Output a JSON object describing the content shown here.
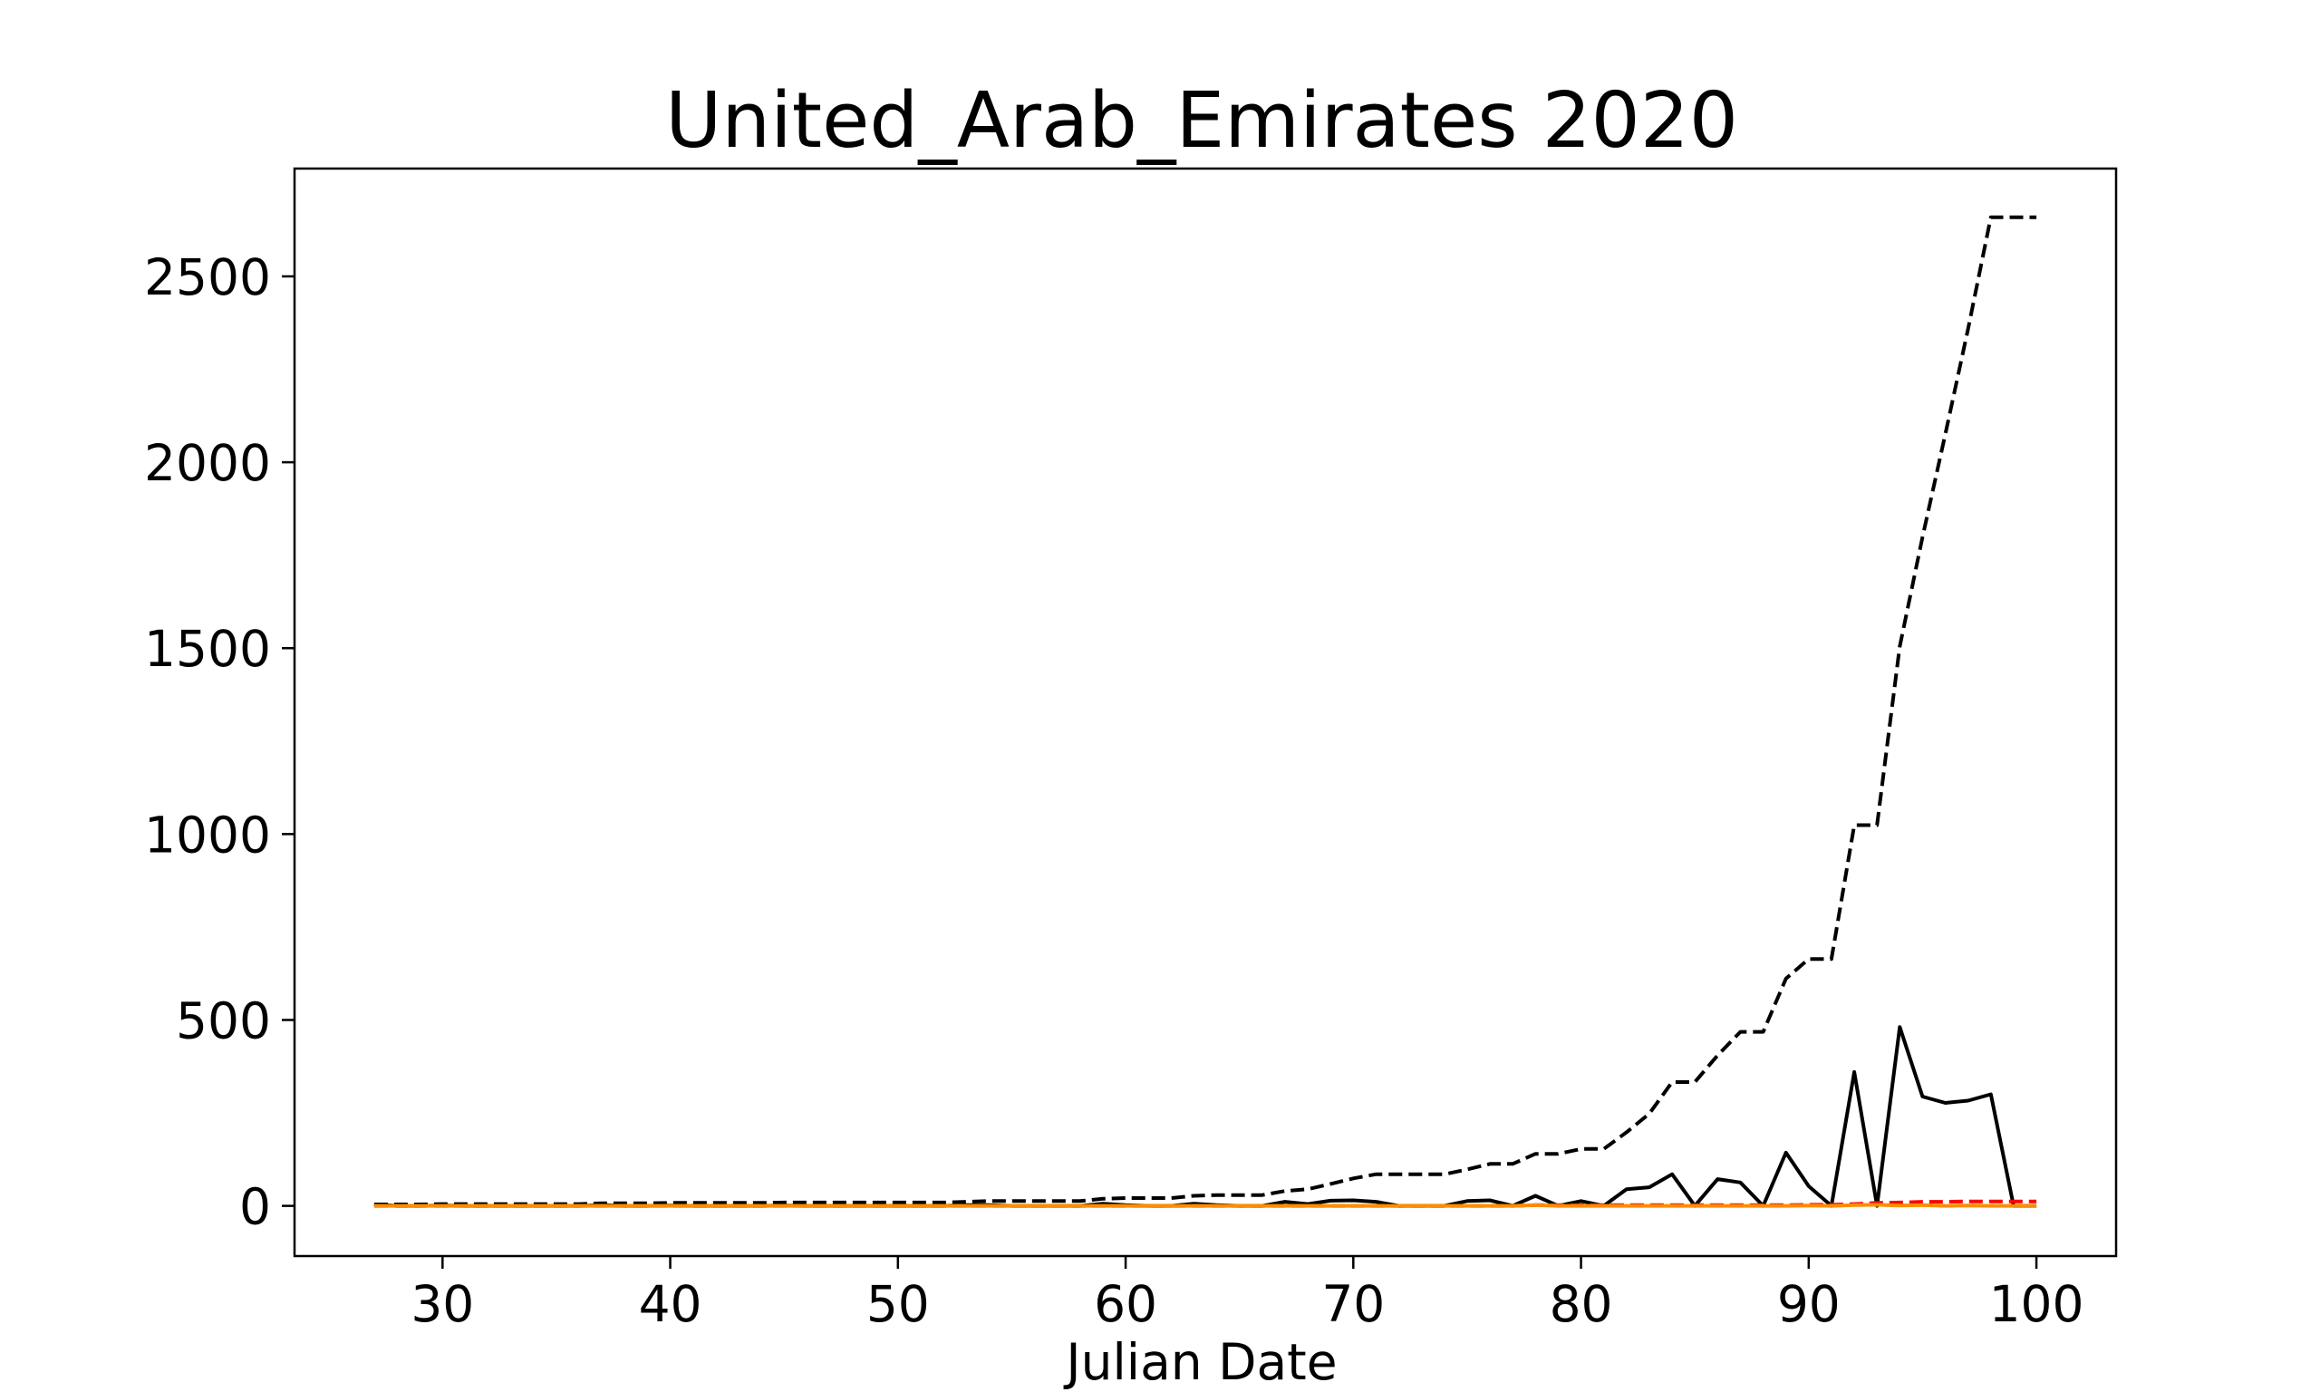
{
  "chart_data": {
    "type": "line",
    "title": "United_Arab_Emirates 2020",
    "xlabel": "Julian Date",
    "ylabel": "",
    "xlim": [
      23.5,
      103.5
    ],
    "ylim": [
      -135,
      2790
    ],
    "xticks": [
      30,
      40,
      50,
      60,
      70,
      80,
      90,
      100
    ],
    "yticks": [
      0,
      500,
      1000,
      1500,
      2000,
      2500
    ],
    "grid": false,
    "legend": "none",
    "x": [
      27,
      28,
      29,
      30,
      31,
      32,
      33,
      34,
      35,
      36,
      37,
      38,
      39,
      40,
      41,
      42,
      43,
      44,
      45,
      46,
      47,
      48,
      49,
      50,
      51,
      52,
      53,
      54,
      55,
      56,
      57,
      58,
      59,
      60,
      61,
      62,
      63,
      64,
      65,
      66,
      67,
      68,
      69,
      70,
      71,
      72,
      73,
      74,
      75,
      76,
      77,
      78,
      79,
      80,
      81,
      82,
      83,
      84,
      85,
      86,
      87,
      88,
      89,
      90,
      91,
      92,
      93,
      94,
      95,
      96,
      97,
      98,
      99,
      100
    ],
    "series": [
      {
        "style": "dashed",
        "color": "#000000",
        "values": [
          4,
          4,
          4,
          5,
          5,
          5,
          5,
          5,
          5,
          5,
          7,
          7,
          7,
          8,
          8,
          8,
          8,
          8,
          9,
          9,
          9,
          9,
          9,
          9,
          9,
          9,
          11,
          13,
          13,
          13,
          13,
          13,
          19,
          21,
          21,
          21,
          27,
          29,
          29,
          29,
          40,
          45,
          59,
          74,
          85,
          85,
          85,
          85,
          98,
          113,
          113,
          140,
          140,
          153,
          153,
          198,
          248,
          333,
          333,
          405,
          468,
          468,
          611,
          664,
          664,
          1024,
          1024,
          1505,
          1799,
          2076,
          2359,
          2659,
          2659,
          2659
        ]
      },
      {
        "style": "solid",
        "color": "#000000",
        "values": [
          4,
          0,
          0,
          1,
          0,
          0,
          0,
          0,
          0,
          0,
          2,
          0,
          0,
          1,
          0,
          0,
          0,
          0,
          1,
          0,
          0,
          0,
          0,
          0,
          0,
          0,
          2,
          2,
          0,
          0,
          0,
          0,
          6,
          2,
          0,
          0,
          6,
          2,
          0,
          0,
          11,
          5,
          14,
          15,
          11,
          0,
          0,
          0,
          13,
          15,
          0,
          27,
          0,
          13,
          0,
          45,
          50,
          85,
          0,
          72,
          63,
          0,
          143,
          53,
          0,
          360,
          0,
          481,
          294,
          277,
          283,
          300,
          0,
          0
        ]
      },
      {
        "style": "dashed",
        "color": "#ff0000",
        "values": [
          0,
          0,
          0,
          0,
          0,
          0,
          0,
          0,
          0,
          0,
          0,
          0,
          0,
          0,
          0,
          0,
          0,
          0,
          0,
          0,
          0,
          0,
          0,
          0,
          0,
          0,
          0,
          0,
          0,
          0,
          0,
          0,
          0,
          0,
          0,
          0,
          0,
          0,
          0,
          0,
          0,
          0,
          0,
          0,
          0,
          0,
          0,
          0,
          0,
          0,
          0,
          2,
          2,
          2,
          2,
          2,
          2,
          2,
          2,
          2,
          2,
          2,
          2,
          3,
          3,
          5,
          8,
          9,
          11,
          11,
          12,
          12,
          12,
          12
        ]
      },
      {
        "style": "solid",
        "color": "#ff8c00",
        "values": [
          0,
          0,
          0,
          0,
          0,
          0,
          0,
          0,
          0,
          0,
          0,
          0,
          0,
          0,
          0,
          0,
          0,
          0,
          0,
          0,
          0,
          0,
          0,
          0,
          0,
          0,
          0,
          0,
          0,
          0,
          0,
          0,
          0,
          0,
          0,
          0,
          0,
          0,
          0,
          0,
          0,
          0,
          0,
          0,
          0,
          0,
          0,
          0,
          0,
          0,
          0,
          2,
          0,
          0,
          0,
          0,
          0,
          0,
          0,
          0,
          0,
          0,
          0,
          1,
          0,
          2,
          3,
          1,
          2,
          0,
          1,
          0,
          0,
          0
        ]
      }
    ]
  }
}
